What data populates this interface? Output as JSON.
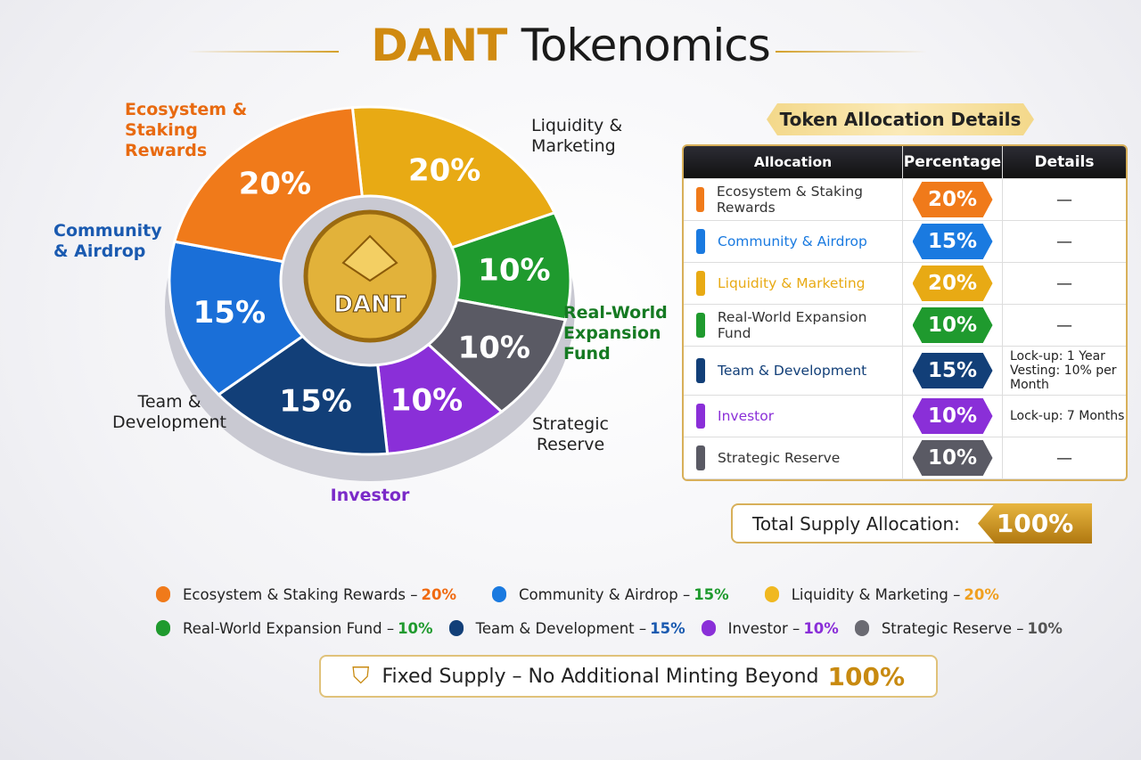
{
  "title": {
    "brand": "DANT",
    "rest": "Tokenomics"
  },
  "coin_label": "DANT",
  "table": {
    "heading": "Token Allocation Details",
    "columns": [
      "Allocation",
      "Percentage",
      "Details"
    ],
    "rows": [
      {
        "name": "Ecosystem & Staking Rewards",
        "pct": "20%",
        "color": "#f07a1a",
        "details": [
          "—"
        ]
      },
      {
        "name": "Community & Airdrop",
        "pct": "15%",
        "color": "#1a7ae0",
        "details": [
          "—"
        ]
      },
      {
        "name": "Liquidity & Marketing",
        "pct": "20%",
        "color": "#e8aa14",
        "details": [
          "—"
        ]
      },
      {
        "name": "Real-World Expansion Fund",
        "pct": "10%",
        "color": "#1f9a2e",
        "details": [
          "—"
        ]
      },
      {
        "name": "Team & Development",
        "pct": "15%",
        "color": "#123f78",
        "details": [
          "Lock-up: 1 Year",
          "Vesting: 10% per Month"
        ]
      },
      {
        "name": "Investor",
        "pct": "10%",
        "color": "#8a2fd8",
        "details": [
          "Lock-up: 7 Months"
        ]
      },
      {
        "name": "Strategic Reserve",
        "pct": "10%",
        "color": "#5a5a64",
        "details": [
          "—"
        ]
      }
    ]
  },
  "total": {
    "label": "Total Supply Allocation:",
    "value": "100%"
  },
  "footer": {
    "text": "Fixed Supply – No Additional Minting Beyond",
    "value": "100%"
  },
  "chart_data": {
    "type": "pie",
    "donut": true,
    "title": "DANT Tokenomics",
    "categories": [
      "Liquidity & Marketing",
      "Real-World Expansion Fund",
      "Strategic Reserve",
      "Investor",
      "Team & Development",
      "Community & Airdrop",
      "Ecosystem & Staking Rewards"
    ],
    "values": [
      20,
      10,
      10,
      10,
      15,
      15,
      20
    ],
    "colors": [
      "#e8aa14",
      "#1f9a2e",
      "#5a5a64",
      "#8a2fd8",
      "#123f78",
      "#1a6fd8",
      "#f07a1a"
    ],
    "data_labels": [
      "20%",
      "10%",
      "10%",
      "10%",
      "15%",
      "15%",
      "20%"
    ],
    "legend": [
      {
        "name": "Ecosystem & Staking Rewards",
        "pct": "20%",
        "color": "#f07a1a",
        "pct_color": "#f06a10"
      },
      {
        "name": "Community & Airdrop",
        "pct": "15%",
        "color": "#1a7ae0",
        "pct_color": "#1f9a2e"
      },
      {
        "name": "Liquidity & Marketing",
        "pct": "20%",
        "color": "#f0b820",
        "pct_color": "#f0a020"
      },
      {
        "name": "Real-World Expansion Fund",
        "pct": "10%",
        "color": "#1f9a2e",
        "pct_color": "#1f9a2e"
      },
      {
        "name": "Team & Development",
        "pct": "15%",
        "color": "#123f78",
        "pct_color": "#1a5ab0"
      },
      {
        "name": "Investor",
        "pct": "10%",
        "color": "#8a2fd8",
        "pct_color": "#8a2fd8"
      },
      {
        "name": "Strategic Reserve",
        "pct": "10%",
        "color": "#6a6a72",
        "pct_color": "#555"
      }
    ],
    "callouts": [
      "Liquidity & Marketing",
      "Real-World Expansion Fund",
      "Strategic Reserve",
      "Investor",
      "Team & Development",
      "Community & Airdrop",
      "Ecosystem & Staking Rewards"
    ]
  }
}
